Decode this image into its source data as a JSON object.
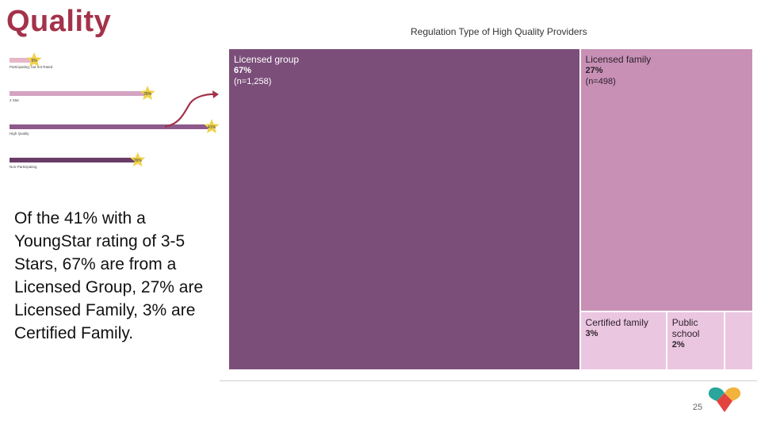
{
  "slide": {
    "title": "Quality",
    "body": "Of the 41% with a YoungStar rating of 3-5 Stars, 67% are from a Licensed Group, 27% are Licensed Family, 3% are Certified Family.",
    "page_number": "25"
  },
  "mini_chart": {
    "rows": [
      {
        "label": "Participating, but not Rated",
        "value_label": "5%",
        "value": 5
      },
      {
        "label": "2 Star",
        "value_label": "28%",
        "value": 28
      },
      {
        "label": "High Quality",
        "value_label": "41%",
        "value": 41
      },
      {
        "label": "Non-Participating",
        "value_label": "26%",
        "value": 26
      }
    ],
    "colors": [
      "#e7b6c9",
      "#d4a3c3",
      "#8e5a8c",
      "#6a3d66"
    ],
    "star_color": "#f0d24c",
    "arrow_color": "#a3324a"
  },
  "chart_data": {
    "type": "treemap",
    "title": "Regulation Type of High Quality Providers",
    "tiles": [
      {
        "label": "Licensed group",
        "percent_label": "67%",
        "value": 67,
        "n_label": "(n=1,258)",
        "n": 1258,
        "color": "#7b4e7a",
        "text_color": "#ffffff"
      },
      {
        "label": "Licensed family",
        "percent_label": "27%",
        "value": 27,
        "n_label": "(n=498)",
        "n": 498,
        "color": "#c890b5",
        "text_color": "#2a1f2a"
      },
      {
        "label": "Certified family",
        "percent_label": "3%",
        "value": 3,
        "n_label": "",
        "color": "#ebc6e0",
        "text_color": "#2a1f2a"
      },
      {
        "label": "Public school",
        "percent_label": "2%",
        "value": 2,
        "n_label": "",
        "color": "#ebc6e0",
        "text_color": "#2a1f2a"
      },
      {
        "label": "",
        "percent_label": "",
        "value": 1,
        "n_label": "",
        "color": "#ebc6e0",
        "text_color": "#2a1f2a"
      }
    ]
  },
  "logo": {
    "colors": [
      "#2aa59b",
      "#f2b33d",
      "#e2433f"
    ]
  }
}
